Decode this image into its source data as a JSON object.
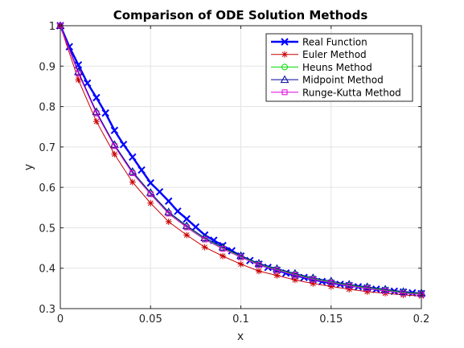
{
  "chart_data": {
    "type": "line",
    "title": "Comparison of ODE Solution Methods",
    "xlabel": "x",
    "ylabel": "y",
    "xlim": [
      0,
      0.2
    ],
    "ylim": [
      0.3,
      1
    ],
    "xticks": [
      "0",
      "0.05",
      "0.1",
      "0.15",
      "0.2"
    ],
    "yticks": [
      "0.3",
      "0.4",
      "0.5",
      "0.6",
      "0.7",
      "0.8",
      "0.9",
      "1"
    ],
    "grid": true,
    "legend_position": "top-right",
    "series": [
      {
        "name": "Real Function",
        "color": "#0000ff",
        "marker": "x",
        "x": [
          0,
          0.005,
          0.01,
          0.015,
          0.02,
          0.025,
          0.03,
          0.035,
          0.04,
          0.045,
          0.05,
          0.055,
          0.06,
          0.065,
          0.07,
          0.075,
          0.08,
          0.085,
          0.09,
          0.095,
          0.1,
          0.105,
          0.11,
          0.115,
          0.12,
          0.125,
          0.13,
          0.135,
          0.14,
          0.145,
          0.15,
          0.155,
          0.16,
          0.165,
          0.17,
          0.175,
          0.18,
          0.185,
          0.19,
          0.195,
          0.2
        ],
        "y": [
          1,
          0.948,
          0.903,
          0.858,
          0.822,
          0.784,
          0.741,
          0.706,
          0.675,
          0.643,
          0.611,
          0.589,
          0.566,
          0.541,
          0.522,
          0.502,
          0.482,
          0.469,
          0.456,
          0.443,
          0.43,
          0.419,
          0.41,
          0.402,
          0.395,
          0.388,
          0.382,
          0.377,
          0.372,
          0.367,
          0.363,
          0.36,
          0.357,
          0.354,
          0.351,
          0.348,
          0.345,
          0.343,
          0.341,
          0.339,
          0.337
        ]
      },
      {
        "name": "Euler Method",
        "color": "#c80000",
        "marker": "star",
        "x": [
          0,
          0.01,
          0.02,
          0.03,
          0.04,
          0.05,
          0.06,
          0.07,
          0.08,
          0.09,
          0.1,
          0.11,
          0.12,
          0.13,
          0.14,
          0.15,
          0.16,
          0.17,
          0.18,
          0.19,
          0.2
        ],
        "y": [
          1,
          0.866,
          0.763,
          0.682,
          0.613,
          0.561,
          0.515,
          0.482,
          0.452,
          0.43,
          0.41,
          0.393,
          0.382,
          0.371,
          0.362,
          0.355,
          0.348,
          0.342,
          0.338,
          0.334,
          0.331
        ]
      },
      {
        "name": "Heuns Method",
        "color": "#00dd00",
        "marker": "circle",
        "x": [
          0,
          0.01,
          0.02,
          0.03,
          0.04,
          0.05,
          0.06,
          0.07,
          0.08,
          0.09,
          0.1,
          0.11,
          0.12,
          0.13,
          0.14,
          0.15,
          0.16,
          0.17,
          0.18,
          0.19,
          0.2
        ],
        "y": [
          1,
          0.884,
          0.785,
          0.704,
          0.637,
          0.585,
          0.537,
          0.503,
          0.473,
          0.45,
          0.429,
          0.41,
          0.397,
          0.385,
          0.374,
          0.366,
          0.358,
          0.352,
          0.346,
          0.34,
          0.337
        ]
      },
      {
        "name": "Midpoint Method",
        "color": "#0000a0",
        "marker": "triangle",
        "x": [
          0,
          0.01,
          0.02,
          0.03,
          0.04,
          0.05,
          0.06,
          0.07,
          0.08,
          0.09,
          0.1,
          0.11,
          0.12,
          0.13,
          0.14,
          0.15,
          0.16,
          0.17,
          0.18,
          0.19,
          0.2
        ],
        "y": [
          1,
          0.886,
          0.787,
          0.706,
          0.639,
          0.587,
          0.539,
          0.505,
          0.475,
          0.452,
          0.431,
          0.412,
          0.399,
          0.387,
          0.376,
          0.368,
          0.36,
          0.354,
          0.348,
          0.342,
          0.339
        ]
      },
      {
        "name": "Runge-Kutta Method",
        "color": "#dd00dd",
        "marker": "square",
        "x": [
          0,
          0.01,
          0.02,
          0.03,
          0.04,
          0.05,
          0.06,
          0.07,
          0.08,
          0.09,
          0.1,
          0.11,
          0.12,
          0.13,
          0.14,
          0.15,
          0.16,
          0.17,
          0.18,
          0.19,
          0.2
        ],
        "y": [
          1,
          0.882,
          0.783,
          0.702,
          0.635,
          0.583,
          0.535,
          0.501,
          0.471,
          0.448,
          0.427,
          0.408,
          0.395,
          0.383,
          0.372,
          0.364,
          0.356,
          0.35,
          0.344,
          0.338,
          0.335
        ]
      }
    ]
  }
}
